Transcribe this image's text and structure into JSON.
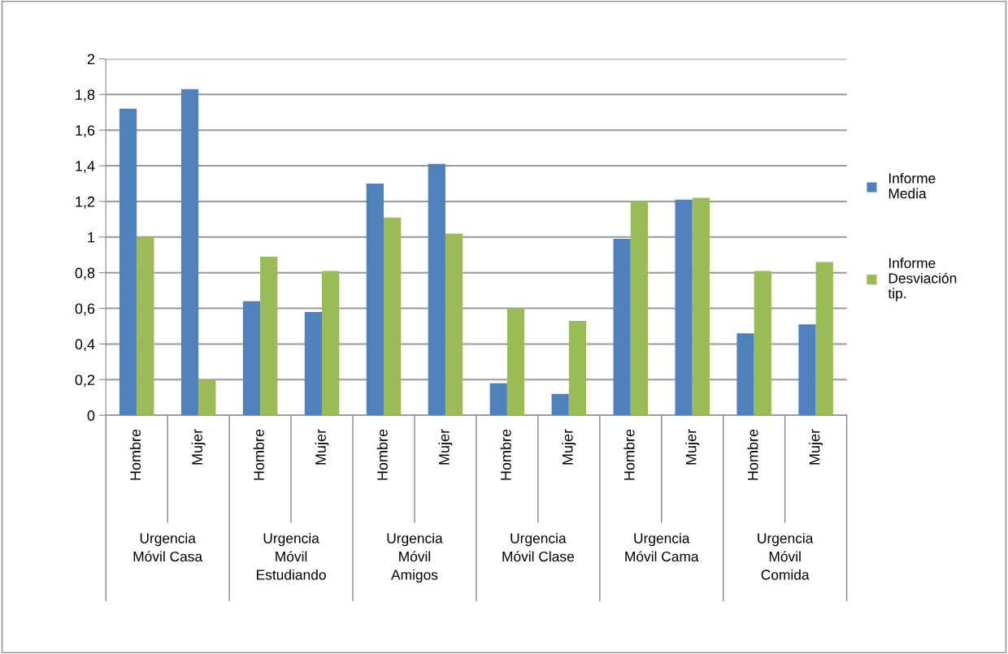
{
  "chart_data": {
    "type": "bar",
    "categories": [
      "Hombre",
      "Mujer",
      "Hombre",
      "Mujer",
      "Hombre",
      "Mujer",
      "Hombre",
      "Mujer",
      "Hombre",
      "Mujer",
      "Hombre",
      "Mujer"
    ],
    "series": [
      {
        "name": "Informe Media",
        "color": "#4f81bd",
        "values": [
          1.72,
          1.83,
          0.64,
          0.58,
          1.3,
          1.41,
          0.18,
          0.12,
          0.99,
          1.21,
          0.46,
          0.51
        ]
      },
      {
        "name": "Informe Desviación tip.",
        "color": "#9bbb59",
        "values": [
          1.0,
          0.2,
          0.89,
          0.81,
          1.11,
          1.02,
          0.6,
          0.53,
          1.2,
          1.22,
          0.81,
          0.86
        ]
      }
    ],
    "annotations": [
      "Urgencia Móvil Casa",
      "Urgencia Móvil Estudiando",
      "Urgencia Móvil Amigos",
      "Urgencia Móvil Clase",
      "Urgencia Móvil Cama",
      "Urgencia Móvil Comida"
    ],
    "ylim": [
      0,
      2
    ],
    "yticks": [
      {
        "value": 0,
        "label": "0"
      },
      {
        "value": 0.2,
        "label": "0,2"
      },
      {
        "value": 0.4,
        "label": "0,4"
      },
      {
        "value": 0.6,
        "label": "0,6"
      },
      {
        "value": 0.8,
        "label": "0,8"
      },
      {
        "value": 1,
        "label": "1"
      },
      {
        "value": 1.2,
        "label": "1,2"
      },
      {
        "value": 1.4,
        "label": "1,4"
      },
      {
        "value": 1.6,
        "label": "1,6"
      },
      {
        "value": 1.8,
        "label": "1,8"
      },
      {
        "value": 2,
        "label": "2"
      }
    ],
    "grid": "y",
    "legend": "right"
  }
}
